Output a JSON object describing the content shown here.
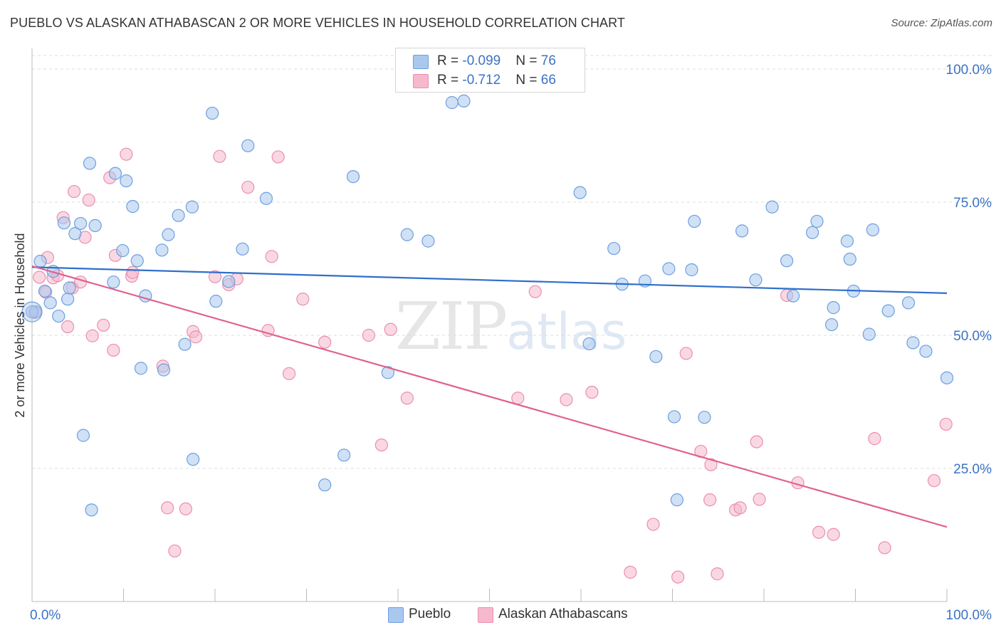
{
  "header": {
    "title": "PUEBLO VS ALASKAN ATHABASCAN 2 OR MORE VEHICLES IN HOUSEHOLD CORRELATION CHART",
    "source": "Source: ZipAtlas.com"
  },
  "watermark": {
    "zip": "ZIP",
    "atlas": "atlas"
  },
  "legend": {
    "rows": [
      {
        "r_label": "R = ",
        "r_value": "-0.099",
        "n_label": "N = ",
        "n_value": "76"
      },
      {
        "r_label": "R = ",
        "r_value": " -0.712",
        "n_label": "N = ",
        "n_value": "66"
      }
    ]
  },
  "chart_data": {
    "type": "scatter",
    "title": "PUEBLO VS ALASKAN ATHABASCAN 2 OR MORE VEHICLES IN HOUSEHOLD CORRELATION CHART",
    "xlabel": "",
    "ylabel": "2 or more Vehicles in Household",
    "xlim": [
      0,
      100
    ],
    "ylim": [
      0,
      100
    ],
    "x_tick_labels": [
      "0.0%",
      "100.0%"
    ],
    "y_ticks": [
      25,
      50,
      75,
      100
    ],
    "y_tick_labels": [
      "25.0%",
      "50.0%",
      "75.0%",
      "100.0%"
    ],
    "grid": true,
    "legend_position": "top-center",
    "colors": {
      "pueblo_fill": "#aac8ee",
      "pueblo_stroke": "#6d9fde",
      "pueblo_line": "#2f6fcb",
      "alaskan_fill": "#f6b8cc",
      "alaskan_stroke": "#ea8fad",
      "alaskan_line": "#e0628f",
      "axis_label": "#3b73c4"
    },
    "series": [
      {
        "name": "Pueblo",
        "r": -0.099,
        "n": 76,
        "trend": {
          "x": [
            0,
            100
          ],
          "y": [
            62.8,
            57.9
          ]
        },
        "points": [
          [
            0.4,
            54.4
          ],
          [
            0.9,
            63.9
          ],
          [
            1.4,
            58.3
          ],
          [
            2.0,
            56.1
          ],
          [
            2.3,
            62.0
          ],
          [
            2.9,
            53.6
          ],
          [
            3.5,
            71.1
          ],
          [
            3.9,
            56.8
          ],
          [
            4.1,
            58.9
          ],
          [
            4.7,
            69.1
          ],
          [
            5.3,
            71.0
          ],
          [
            5.6,
            31.2
          ],
          [
            6.3,
            82.3
          ],
          [
            6.5,
            17.2
          ],
          [
            6.9,
            70.6
          ],
          [
            8.9,
            60.0
          ],
          [
            9.1,
            80.4
          ],
          [
            9.9,
            65.9
          ],
          [
            10.3,
            79.0
          ],
          [
            11.0,
            74.2
          ],
          [
            11.5,
            64.0
          ],
          [
            11.9,
            43.8
          ],
          [
            12.4,
            57.4
          ],
          [
            14.2,
            66.0
          ],
          [
            14.4,
            43.5
          ],
          [
            14.9,
            68.9
          ],
          [
            16.0,
            72.5
          ],
          [
            16.7,
            48.3
          ],
          [
            17.5,
            74.1
          ],
          [
            17.6,
            26.7
          ],
          [
            19.7,
            91.7
          ],
          [
            20.1,
            56.4
          ],
          [
            21.5,
            60.1
          ],
          [
            23.0,
            66.2
          ],
          [
            23.6,
            85.6
          ],
          [
            25.6,
            75.7
          ],
          [
            32.0,
            21.9
          ],
          [
            34.1,
            27.5
          ],
          [
            35.1,
            79.8
          ],
          [
            38.9,
            43.0
          ],
          [
            41.0,
            68.9
          ],
          [
            43.3,
            67.7
          ],
          [
            45.9,
            93.7
          ],
          [
            47.2,
            94.0
          ],
          [
            59.9,
            76.8
          ],
          [
            60.9,
            48.4
          ],
          [
            63.6,
            66.3
          ],
          [
            64.5,
            59.6
          ],
          [
            67.0,
            60.2
          ],
          [
            68.2,
            46.0
          ],
          [
            69.6,
            62.5
          ],
          [
            70.2,
            34.7
          ],
          [
            70.5,
            19.1
          ],
          [
            72.1,
            62.3
          ],
          [
            72.4,
            71.4
          ],
          [
            73.5,
            34.6
          ],
          [
            77.6,
            69.6
          ],
          [
            79.1,
            60.4
          ],
          [
            80.9,
            74.1
          ],
          [
            82.5,
            64.0
          ],
          [
            83.2,
            57.4
          ],
          [
            85.3,
            69.3
          ],
          [
            85.8,
            71.4
          ],
          [
            87.4,
            52.0
          ],
          [
            87.6,
            55.2
          ],
          [
            89.1,
            67.7
          ],
          [
            89.4,
            64.3
          ],
          [
            89.8,
            58.3
          ],
          [
            91.5,
            50.2
          ],
          [
            91.9,
            69.8
          ],
          [
            93.6,
            54.6
          ],
          [
            95.8,
            56.1
          ],
          [
            96.3,
            48.6
          ],
          [
            97.7,
            47.0
          ],
          [
            100.0,
            42.0
          ],
          [
            0.0,
            54.4
          ]
        ]
      },
      {
        "name": "Alaskan Athabascans",
        "r": -0.712,
        "n": 66,
        "trend": {
          "x": [
            0,
            100
          ],
          "y": [
            63.0,
            14.0
          ]
        },
        "points": [
          [
            0.3,
            54.3
          ],
          [
            0.8,
            60.9
          ],
          [
            1.5,
            58.1
          ],
          [
            1.7,
            64.6
          ],
          [
            2.3,
            60.8
          ],
          [
            2.8,
            61.2
          ],
          [
            3.4,
            72.1
          ],
          [
            3.9,
            51.6
          ],
          [
            4.4,
            58.9
          ],
          [
            4.6,
            77.0
          ],
          [
            5.3,
            60.0
          ],
          [
            5.8,
            68.4
          ],
          [
            6.2,
            75.4
          ],
          [
            6.6,
            49.9
          ],
          [
            7.8,
            51.9
          ],
          [
            8.5,
            79.6
          ],
          [
            8.9,
            47.2
          ],
          [
            9.1,
            65.0
          ],
          [
            10.3,
            84.0
          ],
          [
            10.9,
            61.1
          ],
          [
            11.0,
            61.8
          ],
          [
            14.3,
            44.2
          ],
          [
            14.8,
            17.6
          ],
          [
            15.6,
            9.5
          ],
          [
            16.8,
            17.4
          ],
          [
            17.6,
            50.7
          ],
          [
            17.9,
            49.7
          ],
          [
            20.5,
            83.6
          ],
          [
            21.5,
            59.5
          ],
          [
            22.4,
            60.6
          ],
          [
            23.6,
            77.8
          ],
          [
            25.8,
            50.9
          ],
          [
            26.2,
            64.8
          ],
          [
            26.9,
            83.5
          ],
          [
            28.1,
            42.8
          ],
          [
            29.6,
            56.8
          ],
          [
            32.0,
            48.7
          ],
          [
            36.8,
            50.0
          ],
          [
            38.2,
            29.4
          ],
          [
            39.2,
            51.1
          ],
          [
            41.0,
            38.2
          ],
          [
            53.1,
            38.2
          ],
          [
            55.0,
            58.2
          ],
          [
            58.4,
            37.9
          ],
          [
            61.2,
            39.3
          ],
          [
            65.4,
            5.5
          ],
          [
            67.9,
            14.5
          ],
          [
            70.6,
            4.6
          ],
          [
            71.5,
            46.6
          ],
          [
            73.1,
            28.2
          ],
          [
            74.1,
            19.1
          ],
          [
            74.2,
            25.7
          ],
          [
            74.9,
            5.2
          ],
          [
            76.9,
            17.2
          ],
          [
            77.4,
            17.6
          ],
          [
            79.2,
            30.0
          ],
          [
            79.5,
            19.2
          ],
          [
            82.5,
            57.5
          ],
          [
            83.7,
            22.3
          ],
          [
            86.0,
            13.0
          ],
          [
            87.6,
            12.6
          ],
          [
            92.1,
            30.6
          ],
          [
            93.2,
            10.1
          ],
          [
            98.6,
            22.7
          ],
          [
            99.9,
            33.3
          ],
          [
            20.0,
            61.0
          ]
        ]
      }
    ]
  }
}
